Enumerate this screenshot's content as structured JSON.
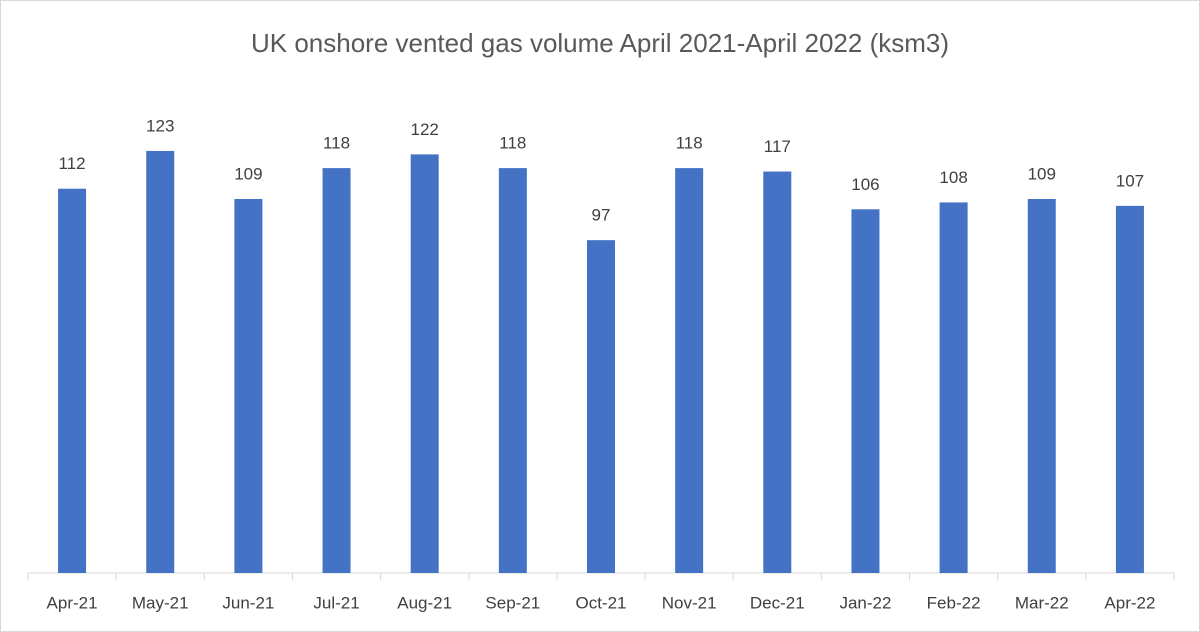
{
  "chart_data": {
    "type": "bar",
    "title": "UK onshore vented gas volume April 2021-April 2022  (ksm3)",
    "categories": [
      "Apr-21",
      "May-21",
      "Jun-21",
      "Jul-21",
      "Aug-21",
      "Sep-21",
      "Oct-21",
      "Nov-21",
      "Dec-21",
      "Jan-22",
      "Feb-22",
      "Mar-22",
      "Apr-22"
    ],
    "values": [
      112,
      123,
      109,
      118,
      122,
      118,
      97,
      118,
      117,
      106,
      108,
      109,
      107
    ],
    "color": "#4472c4",
    "ylim": [
      0,
      160
    ]
  }
}
